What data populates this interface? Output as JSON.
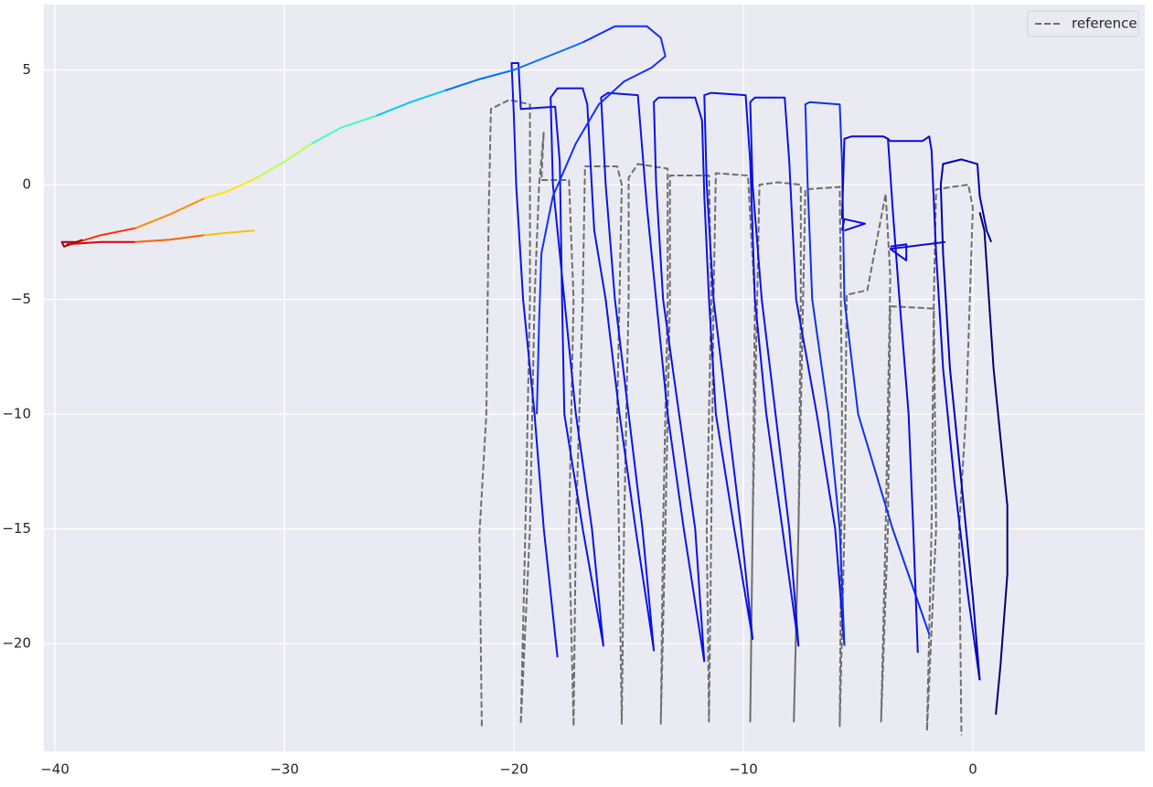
{
  "chart_data": {
    "type": "line",
    "xlim": [
      -40.48,
      7.49
    ],
    "ylim": [
      -24.7,
      7.85
    ],
    "xticks": [
      {
        "value": -40,
        "label": "−40"
      },
      {
        "value": -30,
        "label": "−30"
      },
      {
        "value": -20,
        "label": "−20"
      },
      {
        "value": -10,
        "label": "−10"
      },
      0
    ],
    "yticks": [
      5,
      0,
      {
        "value": -5,
        "label": "−5"
      },
      {
        "value": -10,
        "label": "−10"
      },
      {
        "value": -15,
        "label": "−15"
      },
      {
        "value": -20,
        "label": "−20"
      }
    ],
    "grid": true,
    "legend": "upper right",
    "series": [
      {
        "name": "reference",
        "color": "#6e6e6e",
        "linestyle": "dashed",
        "x": [
          -21.4,
          -21.5,
          -21.2,
          -21.1,
          -21.0,
          -20.2,
          -19.3,
          -19.3,
          -19.5,
          -19.7,
          -19.3,
          -19.1,
          -18.9,
          -18.7,
          -18.8,
          -17.6,
          -17.4,
          -17.6,
          -17.4,
          -17.3,
          -17.0,
          -16.9,
          -15.5,
          -15.3,
          -15.5,
          -15.3,
          -15.2,
          -15.0,
          -15.0,
          -14.6,
          -13.3,
          -13.3,
          -13.5,
          -13.6,
          -13.4,
          -13.2,
          -13.2,
          -11.5,
          -11.4,
          -11.6,
          -11.5,
          -11.4,
          -11.3,
          -11.2,
          -9.8,
          -9.5,
          -9.6,
          -9.7,
          -9.6,
          -9.4,
          -9.3,
          -8.5,
          -7.5,
          -7.5,
          -7.6,
          -7.8,
          -7.6,
          -7.4,
          -7.3,
          -5.8,
          -5.7,
          -5.8,
          -5.6,
          -5.5,
          -4.6,
          -3.8,
          -3.6,
          -3.8,
          -4.0,
          -3.7,
          -3.6,
          -1.7,
          -1.6,
          -2.0,
          -1.8,
          -1.7,
          -1.6,
          -0.2,
          0.0,
          -0.3,
          -0.6,
          -0.5
        ],
        "y": [
          -23.6,
          -15.2,
          -10,
          -1.5,
          3.3,
          3.7,
          3.5,
          -5,
          -15,
          -23.5,
          -15,
          -5,
          0,
          2.3,
          0.2,
          0.2,
          -5,
          -15,
          -23.6,
          -15,
          -5,
          0.8,
          0.8,
          0,
          -10,
          -23.5,
          -15,
          -5,
          0.3,
          0.9,
          0.7,
          -5,
          -15,
          -23.5,
          -15,
          -5,
          0.4,
          0.4,
          -5,
          -15,
          -23.4,
          -15,
          -5,
          0.5,
          0.4,
          -5,
          -15,
          -23.4,
          -15,
          -5,
          0,
          0.1,
          0,
          -5,
          -15,
          -23.4,
          -15,
          -5,
          -0.2,
          -0.1,
          -10,
          -23.6,
          -15,
          -4.8,
          -4.6,
          -0.4,
          -4,
          -15,
          -23.4,
          -15,
          -5.3,
          -5.4,
          -15,
          -23.8,
          -15,
          -5,
          -0.2,
          0,
          -1,
          -10,
          -15,
          -24
        ]
      },
      {
        "color": "#0a14e6",
        "x": [
          -18.1,
          -18.7,
          -19.1,
          -19.6,
          -19.9,
          -20.0,
          -20.1,
          -19.8,
          -19.7,
          -18.2,
          -18.0,
          -17.9,
          -17.8,
          -17.0,
          -16.1,
          -16.6,
          -17.3,
          -17.8,
          -18.3,
          -18.4,
          -18.1,
          -17.0,
          -16.8,
          -16.5,
          -16.0,
          -15.4,
          -14.7,
          -13.9,
          -14.4,
          -15.0,
          -15.6,
          -16.0,
          -16.2,
          -15.9,
          -14.6,
          -14.2,
          -13.8,
          -13.3,
          -12.6,
          -11.7
        ],
        "y": [
          -20.6,
          -15,
          -10,
          -5,
          0,
          3,
          5.3,
          5.3,
          3.3,
          3.4,
          1,
          -5,
          -10,
          -15,
          -20.1,
          -15,
          -10,
          -5,
          0,
          3.8,
          4.2,
          4.2,
          3.5,
          -2,
          -5,
          -10,
          -15,
          -20.3,
          -15,
          -10,
          -5,
          0,
          3.8,
          4.0,
          3.9,
          -1,
          -5,
          -10,
          -15,
          -20.8
        ]
      },
      {
        "color": "#0c12e2",
        "x": [
          -11.7,
          -12.1,
          -12.8,
          -13.5,
          -13.8,
          -13.9,
          -13.7,
          -12.1,
          -11.8,
          -11.7,
          -11.5,
          -11.2,
          -10.4,
          -9.6,
          -10.1,
          -10.7,
          -11.3,
          -11.6,
          -11.7,
          -11.4,
          -9.9,
          -9.7,
          -9.5,
          -9.0,
          -8.3,
          -7.6,
          -8.0,
          -8.6,
          -9.2,
          -9.6,
          -9.7,
          -9.5,
          -8.2,
          -8.0,
          -7.7,
          -6.8,
          -6.0,
          -5.6
        ],
        "y": [
          -20.8,
          -15,
          -10,
          -5,
          0,
          3.6,
          3.8,
          3.8,
          2.8,
          -0.5,
          -5,
          -10,
          -15,
          -19.8,
          -15,
          -10,
          -5,
          0,
          3.9,
          4.0,
          3.9,
          1,
          -5,
          -10,
          -15,
          -20.1,
          -15,
          -10,
          -5,
          0,
          3.6,
          3.8,
          3.8,
          1,
          -5,
          -10,
          -15,
          -20.1
        ]
      },
      {
        "color": "#1030ea",
        "x": [
          -5.6,
          -5.8,
          -6.3,
          -7.0,
          -7.2,
          -7.3,
          -7.1,
          -5.8,
          -5.7,
          -5.6,
          -5.0,
          -3.5,
          -1.9
        ],
        "y": [
          -20.1,
          -15,
          -10,
          -5,
          0,
          3.5,
          3.6,
          3.5,
          1,
          -5,
          -10,
          -15,
          -19.6
        ]
      },
      {
        "color": "#0808d8",
        "x": [
          -5.7,
          -5.6,
          -5.3,
          -3.9,
          -3.7,
          -3.6,
          -2.2,
          -1.9,
          -1.8,
          -1.6,
          -1.3,
          -0.8,
          -0.2,
          0.3
        ],
        "y": [
          -1.5,
          2.0,
          2.1,
          2.1,
          2.0,
          1.9,
          1.9,
          2.1,
          1.5,
          -3,
          -8,
          -13,
          -18,
          -21.6
        ]
      },
      {
        "color": "#0a0ae0",
        "x": [
          -2.4,
          -2.6,
          -2.8,
          -3.2,
          -3.5,
          -3.7
        ],
        "y": [
          -20.4,
          -15,
          -10,
          -5,
          -1,
          2.0
        ]
      },
      {
        "color": "#0a0ae0",
        "x": [
          -3.6,
          -2.9,
          -2.9,
          -3.6,
          -1.2
        ],
        "y": [
          -2.7,
          -2.6,
          -3.3,
          -2.8,
          -2.5
        ]
      },
      {
        "color": "#0a0ae0",
        "x": [
          -5.6,
          -4.7,
          -5.6,
          -5.7
        ],
        "y": [
          -2.0,
          -1.7,
          -1.5,
          -2.0
        ]
      },
      {
        "color": "#0000b0",
        "x": [
          0.3,
          0.0,
          -0.5,
          -1.0,
          -1.3,
          -1.4,
          -1.3,
          -0.5,
          0.2,
          0.3,
          0.6,
          0.8
        ],
        "y": [
          -21.6,
          -18,
          -13,
          -8,
          -3,
          0,
          0.9,
          1.1,
          0.9,
          -0.5,
          -2.0,
          -2.5
        ]
      },
      {
        "color": "#000070",
        "x": [
          0.3,
          0.5,
          0.9,
          1.2,
          1.5,
          1.5,
          1.2,
          1.0
        ],
        "y": [
          -1.2,
          -2,
          -8,
          -11,
          -14,
          -17,
          -21,
          -23.1
        ]
      },
      {
        "color": "#1030ff",
        "x": [
          -19.0,
          -18.9,
          -18.8,
          -18.3,
          -17.3,
          -16.3,
          -15.2,
          -14.0,
          -13.4,
          -13.6,
          -14.2,
          -15.6,
          -17.0
        ],
        "y": [
          -10,
          -6,
          -3,
          -0.5,
          1.8,
          3.5,
          4.5,
          5.1,
          5.6,
          6.4,
          6.9,
          6.9,
          6.2
        ]
      },
      {
        "color": "#0070ff",
        "x": [
          -17.0,
          -18.5,
          -20.0,
          -21.5,
          -23.0
        ],
        "y": [
          6.2,
          5.6,
          5.0,
          4.6,
          4.1
        ]
      },
      {
        "color": "#00c8ff",
        "x": [
          -23.0,
          -24.5,
          -26.0
        ],
        "y": [
          4.1,
          3.6,
          3.0
        ]
      },
      {
        "color": "#40ffb8",
        "x": [
          -26.0,
          -27.5,
          -28.8
        ],
        "y": [
          3.0,
          2.5,
          1.8
        ]
      },
      {
        "color": "#b8ff48",
        "x": [
          -28.8,
          -30.0,
          -31.2
        ],
        "y": [
          1.8,
          1.0,
          0.3
        ]
      },
      {
        "color": "#ffe600",
        "x": [
          -31.2,
          -32.5,
          -33.5
        ],
        "y": [
          0.3,
          -0.3,
          -0.6
        ]
      },
      {
        "color": "#ff8c00",
        "x": [
          -33.5,
          -35.0,
          -36.5
        ],
        "y": [
          -0.6,
          -1.3,
          -1.9
        ]
      },
      {
        "color": "#ff3000",
        "x": [
          -36.5,
          -38.0,
          -39.0
        ],
        "y": [
          -1.9,
          -2.2,
          -2.5
        ]
      },
      {
        "color": "#a00000",
        "x": [
          -39.0,
          -39.7,
          -39.6,
          -38.8
        ],
        "y": [
          -2.5,
          -2.5,
          -2.7,
          -2.4
        ]
      },
      {
        "color": "#dc0000",
        "x": [
          -39.5,
          -38.0,
          -36.5
        ],
        "y": [
          -2.6,
          -2.5,
          -2.5
        ]
      },
      {
        "color": "#ff6000",
        "x": [
          -36.5,
          -35.0,
          -33.5
        ],
        "y": [
          -2.5,
          -2.4,
          -2.2
        ]
      },
      {
        "color": "#ffc000",
        "x": [
          -33.5,
          -32.5,
          -31.3
        ],
        "y": [
          -2.2,
          -2.1,
          -2.0
        ]
      }
    ]
  }
}
